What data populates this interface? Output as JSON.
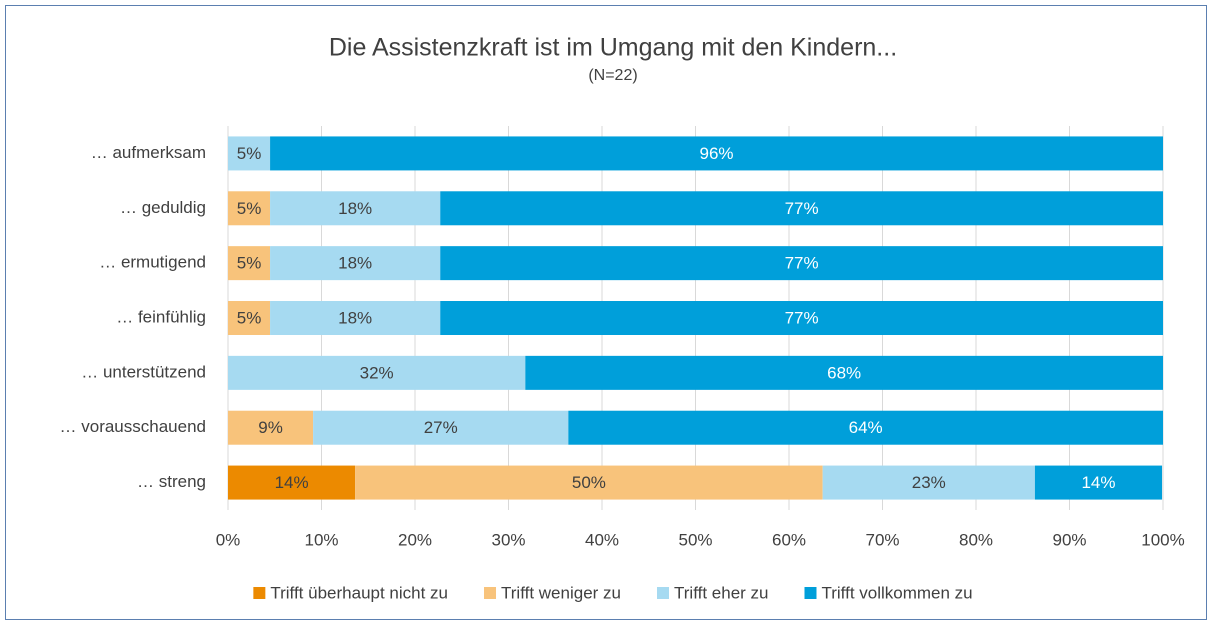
{
  "chart_data": {
    "type": "stacked-bar-horizontal",
    "title": "Die Assistenzkraft ist im Umgang mit den Kindern...",
    "subtitle": "(N=22)",
    "categories": [
      "… aufmerksam",
      "… geduldig",
      "… ermutigend",
      "… feinfühlig",
      "… unterstützend",
      "… vorausschauend",
      "… streng"
    ],
    "series": [
      {
        "name": "Trifft überhaupt nicht zu",
        "color": "#ec8a00",
        "values": [
          null,
          null,
          null,
          null,
          null,
          null,
          13.6
        ],
        "value_labels": [
          null,
          null,
          null,
          null,
          null,
          null,
          "14%"
        ]
      },
      {
        "name": "Trifft weniger zu",
        "color": "#f8c37b",
        "values": [
          null,
          4.5,
          4.5,
          4.5,
          null,
          9.1,
          50
        ],
        "value_labels": [
          null,
          "5%",
          "5%",
          "5%",
          null,
          "9%",
          "50%"
        ]
      },
      {
        "name": "Trifft eher zu",
        "color": "#a6daf1",
        "values": [
          4.5,
          18.2,
          18.2,
          18.2,
          31.8,
          27.3,
          22.7
        ],
        "value_labels": [
          "5%",
          "18%",
          "18%",
          "18%",
          "32%",
          "27%",
          "23%"
        ]
      },
      {
        "name": "Trifft vollkommen zu",
        "color": "#009fda",
        "values": [
          95.5,
          77.3,
          77.3,
          77.3,
          68.2,
          63.6,
          13.6
        ],
        "value_labels": [
          "96%",
          "77%",
          "77%",
          "77%",
          "68%",
          "64%",
          "14%"
        ]
      }
    ],
    "xlim": [
      0,
      100
    ],
    "xticks": [
      {
        "value": 0,
        "label": "0%"
      },
      {
        "value": 10,
        "label": "10%"
      },
      {
        "value": 20,
        "label": "20%"
      },
      {
        "value": 30,
        "label": "30%"
      },
      {
        "value": 40,
        "label": "40%"
      },
      {
        "value": 50,
        "label": "50%"
      },
      {
        "value": 60,
        "label": "60%"
      },
      {
        "value": 70,
        "label": "70%"
      },
      {
        "value": 80,
        "label": "80%"
      },
      {
        "value": 90,
        "label": "90%"
      },
      {
        "value": 100,
        "label": "100%"
      }
    ],
    "grid": true,
    "legend": "bottom"
  }
}
